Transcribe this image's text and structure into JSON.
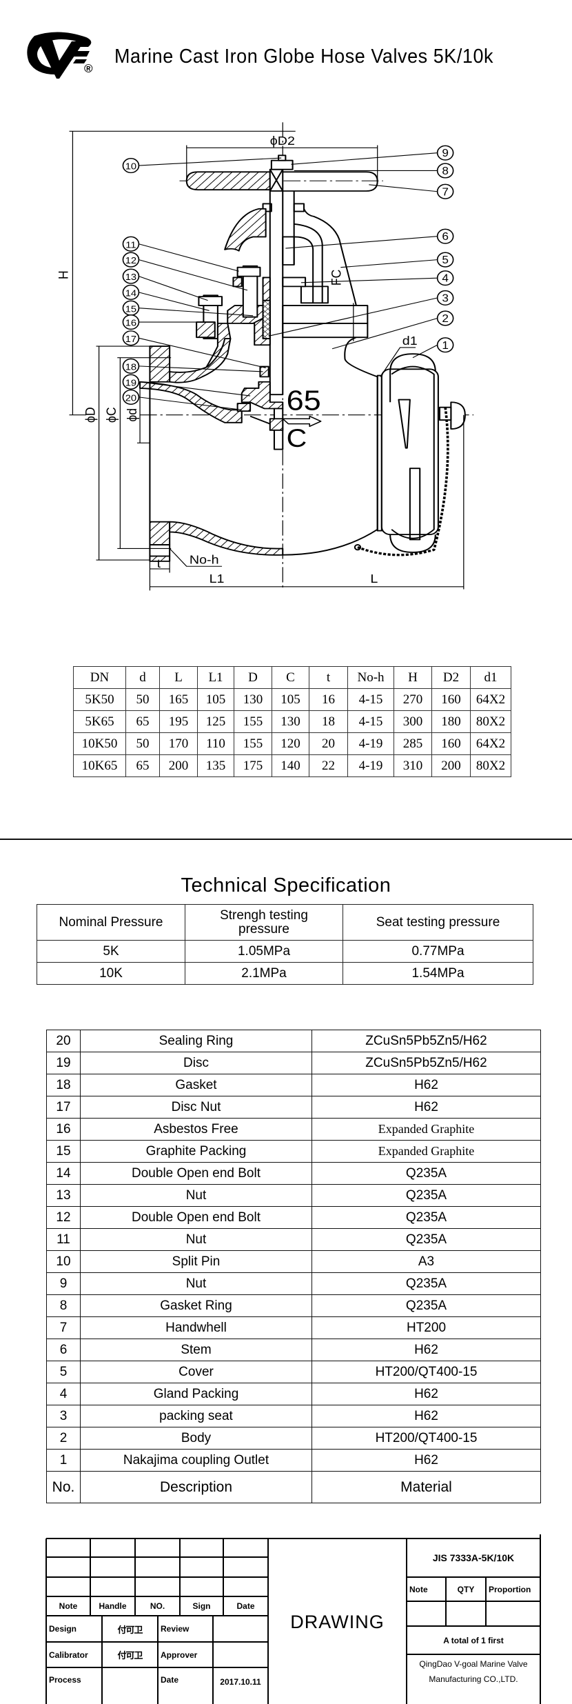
{
  "header": {
    "logo_text": "VG",
    "registered_mark": "®",
    "title": "Marine Cast Iron Globe Hose Valves 5K/10k"
  },
  "drawing": {
    "labels": {
      "d2": "ϕD2",
      "h": "H",
      "d": "ϕD",
      "c": "ϕC",
      "bore": "ϕd",
      "size": "65",
      "c_mark": "C",
      "no_h": "No-h",
      "t": "t",
      "l1": "L1",
      "l": "L",
      "d1": "d1",
      "fc": "FC"
    },
    "callouts": [
      "1",
      "2",
      "3",
      "4",
      "5",
      "6",
      "7",
      "8",
      "9",
      "10",
      "11",
      "12",
      "13",
      "14",
      "15",
      "16",
      "17",
      "18",
      "19",
      "20"
    ]
  },
  "dimension_table": {
    "headers": [
      "DN",
      "d",
      "L",
      "L1",
      "D",
      "C",
      "t",
      "No-h",
      "H",
      "D2",
      "d1"
    ],
    "rows": [
      [
        "5K50",
        "50",
        "165",
        "105",
        "130",
        "105",
        "16",
        "4-15",
        "270",
        "160",
        "64X2"
      ],
      [
        "5K65",
        "65",
        "195",
        "125",
        "155",
        "130",
        "18",
        "4-15",
        "300",
        "180",
        "80X2"
      ],
      [
        "10K50",
        "50",
        "170",
        "110",
        "155",
        "120",
        "20",
        "4-19",
        "285",
        "160",
        "64X2"
      ],
      [
        "10K65",
        "65",
        "200",
        "135",
        "175",
        "140",
        "22",
        "4-19",
        "310",
        "200",
        "80X2"
      ]
    ]
  },
  "technical_specification": {
    "title": "Technical Specification",
    "headers": [
      "Nominal Pressure",
      "Strengh testing pressure",
      "Seat testing pressure"
    ],
    "rows": [
      [
        "5K",
        "1.05MPa",
        "0.77MPa"
      ],
      [
        "10K",
        "2.1MPa",
        "1.54MPa"
      ]
    ]
  },
  "parts_list": {
    "rows": [
      [
        "20",
        "Sealing Ring",
        "ZCuSn5Pb5Zn5/H62"
      ],
      [
        "19",
        "Disc",
        "ZCuSn5Pb5Zn5/H62"
      ],
      [
        "18",
        "Gasket",
        "H62"
      ],
      [
        "17",
        "Disc Nut",
        "H62"
      ],
      [
        "16",
        "Asbestos Free",
        "Expanded Graphite"
      ],
      [
        "15",
        "Graphite Packing",
        "Expanded Graphite"
      ],
      [
        "14",
        "Double Open end Bolt",
        "Q235A"
      ],
      [
        "13",
        "Nut",
        "Q235A"
      ],
      [
        "12",
        "Double Open end Bolt",
        "Q235A"
      ],
      [
        "11",
        "Nut",
        "Q235A"
      ],
      [
        "10",
        "Split Pin",
        "A3"
      ],
      [
        "9",
        "Nut",
        "Q235A"
      ],
      [
        "8",
        "Gasket Ring",
        "Q235A"
      ],
      [
        "7",
        "Handwhell",
        "HT200"
      ],
      [
        "6",
        "Stem",
        "H62"
      ],
      [
        "5",
        "Cover",
        "HT200/QT400-15"
      ],
      [
        "4",
        "Gland Packing",
        "H62"
      ],
      [
        "3",
        "packing seat",
        "H62"
      ],
      [
        "2",
        "Body",
        "HT200/QT400-15"
      ],
      [
        "1",
        "Nakajima coupling Outlet",
        "H62"
      ]
    ],
    "headers": [
      "No.",
      "Description",
      "Material"
    ]
  },
  "title_block": {
    "revision_headers": [
      "Note",
      "Handle",
      "NO.",
      "Sign",
      "Date"
    ],
    "design_label": "Design",
    "design_signature": "付可卫",
    "review_label": "Review",
    "calibrator_label": "Calibrator",
    "calibrator_signature": "付可卫",
    "approver_label": "Approver",
    "process_label": "Process",
    "date_label": "Date",
    "date_value": "2017.10.11",
    "drawing_label": "DRAWING",
    "standard": "JIS 7333A-5K/10K",
    "note_label": "Note",
    "qty_label": "QTY",
    "proportion_label": "Proportion",
    "sheets": "A total of 1 first",
    "company_line1": "QingDao V-goal Marine Valve",
    "company_line2": "Manufacturing CO.,LTD."
  }
}
